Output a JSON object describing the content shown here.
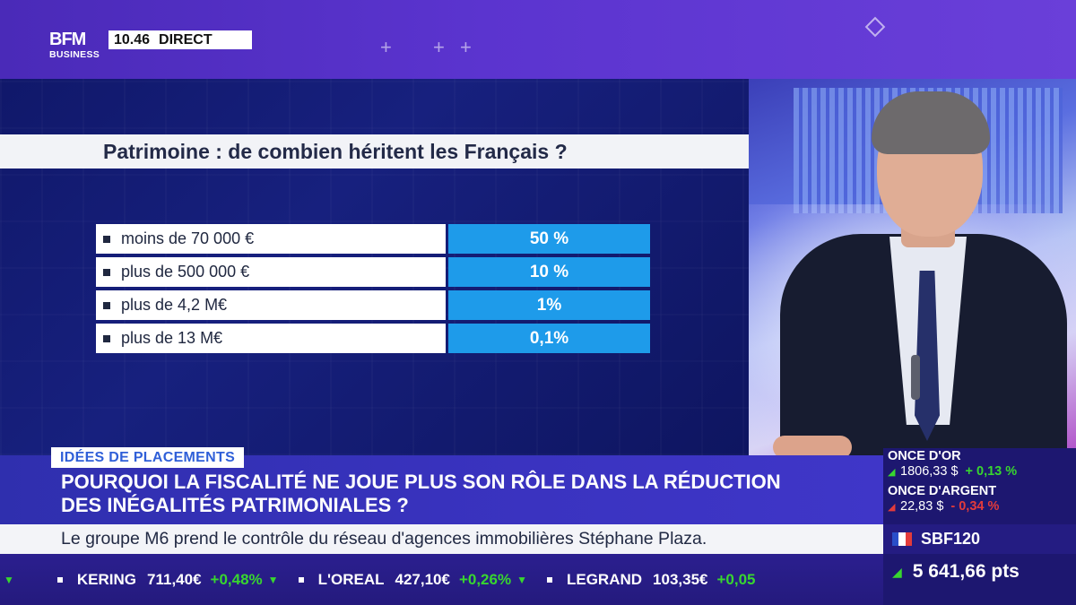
{
  "header": {
    "logo_line1": "BFM",
    "logo_line2": "BUSINESS",
    "time": "10.46",
    "live_label": "DIRECT"
  },
  "graphic": {
    "title": "Patrimoine : de combien héritent les Français ?",
    "rows": [
      {
        "label": "moins de 70 000 €",
        "value": "50 %"
      },
      {
        "label": "plus de 500 000 €",
        "value": "10 %"
      },
      {
        "label": "plus de 4,2 M€",
        "value": "1%"
      },
      {
        "label": "plus de 13 M€",
        "value": "0,1%"
      }
    ]
  },
  "lower_third": {
    "kicker": "IDÉES DE PLACEMENTS",
    "headline_line1": "POURQUOI LA FISCALITÉ NE JOUE PLUS SON RÔLE DANS LA RÉDUCTION",
    "headline_line2": "DES INÉGALITÉS PATRIMONIALES ?",
    "news": "Le groupe M6 prend le contrôle du réseau d'agences immobilières Stéphane Plaza."
  },
  "ticker": [
    {
      "name": "KERING",
      "price": "711,40€",
      "change": "+0,48%"
    },
    {
      "name": "L'OREAL",
      "price": "427,10€",
      "change": "+0,26%"
    },
    {
      "name": "LEGRAND",
      "price": "103,35€",
      "change": "+0,05"
    }
  ],
  "markets": {
    "gold_name": "ONCE D'OR",
    "gold_price": "1806,33 $",
    "gold_change": "+ 0,13 %",
    "silver_name": "ONCE D'ARGENT",
    "silver_price": "22,83 $",
    "silver_change": "- 0,34 %",
    "index_name": "SBF120",
    "index_value": "5 641,66 pts"
  },
  "colors": {
    "accent_blue": "#1e9bea",
    "up_green": "#38d62f",
    "down_red": "#e33b3b"
  }
}
